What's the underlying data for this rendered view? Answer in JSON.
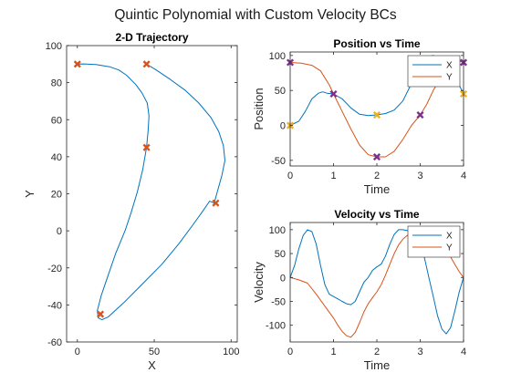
{
  "figure": {
    "suptitle": "Quintic Polynomial with Custom Velocity BCs"
  },
  "chart_data": [
    {
      "type": "line",
      "title": "2-D Trajectory",
      "xlabel": "X",
      "ylabel": "Y",
      "xlim": [
        -7,
        104
      ],
      "ylim": [
        -60,
        100
      ],
      "xticks": [
        0,
        50,
        100
      ],
      "yticks": [
        -60,
        -40,
        -20,
        0,
        20,
        40,
        60,
        80,
        100
      ],
      "grid": false,
      "series": [
        {
          "color": "#0072BD",
          "points": [
            [
              0,
              90
            ],
            [
              4.2,
              90.1
            ],
            [
              12,
              89.8
            ],
            [
              21,
              88.6
            ],
            [
              27,
              86.8
            ],
            [
              32,
              84
            ],
            [
              38,
              79
            ],
            [
              42,
              74.5
            ],
            [
              45.5,
              69
            ],
            [
              46.6,
              62
            ],
            [
              46,
              54
            ],
            [
              45,
              45
            ],
            [
              42.5,
              33
            ],
            [
              39,
              21
            ],
            [
              35,
              10
            ],
            [
              31,
              0
            ],
            [
              25,
              -12
            ],
            [
              20,
              -24
            ],
            [
              15.5,
              -35
            ],
            [
              13,
              -43
            ],
            [
              13.5,
              -47
            ],
            [
              16,
              -48
            ],
            [
              20,
              -46.5
            ],
            [
              30,
              -39
            ],
            [
              42,
              -29
            ],
            [
              55,
              -18
            ],
            [
              66,
              -7
            ],
            [
              75,
              3
            ],
            [
              81,
              10
            ],
            [
              86,
              16
            ],
            [
              89,
              15
            ],
            [
              91,
              21
            ],
            [
              94,
              30
            ],
            [
              96,
              38
            ],
            [
              95,
              46
            ],
            [
              92,
              53.5
            ],
            [
              87,
              61
            ],
            [
              79,
              69
            ],
            [
              70,
              76
            ],
            [
              60,
              82
            ],
            [
              51,
              87
            ],
            [
              45,
              90
            ]
          ]
        },
        {
          "color": "#D95319",
          "marker": "x",
          "points": [
            [
              0,
              90
            ],
            [
              45,
              90
            ],
            [
              45,
              45
            ],
            [
              90,
              15
            ],
            [
              15,
              -45
            ]
          ]
        }
      ]
    },
    {
      "type": "line",
      "title": "Position vs Time",
      "xlabel": "Time",
      "ylabel": "Position",
      "xlim": [
        0,
        4
      ],
      "ylim": [
        -58,
        105
      ],
      "xticks": [
        0,
        1,
        2,
        3,
        4
      ],
      "yticks": [
        -50,
        0,
        50,
        100
      ],
      "grid": false,
      "legend": "top-right",
      "series": [
        {
          "name": "X",
          "color": "#0072BD",
          "points": [
            [
              0,
              0
            ],
            [
              0.2,
              6
            ],
            [
              0.35,
              20
            ],
            [
              0.5,
              38
            ],
            [
              0.65,
              46
            ],
            [
              0.75,
              48
            ],
            [
              0.85,
              46
            ],
            [
              1,
              45
            ],
            [
              1.2,
              38
            ],
            [
              1.4,
              25
            ],
            [
              1.6,
              16
            ],
            [
              1.8,
              14
            ],
            [
              2,
              15
            ],
            [
              2.2,
              17
            ],
            [
              2.4,
              22
            ],
            [
              2.6,
              35
            ],
            [
              2.8,
              60
            ],
            [
              2.95,
              82
            ],
            [
              3.1,
              97
            ],
            [
              3.3,
              100
            ],
            [
              3.5,
              95
            ],
            [
              3.65,
              83
            ],
            [
              3.8,
              65
            ],
            [
              3.92,
              55
            ],
            [
              4,
              45
            ]
          ]
        },
        {
          "name": "Y",
          "color": "#D95319",
          "points": [
            [
              0,
              90
            ],
            [
              0.25,
              89
            ],
            [
              0.5,
              86
            ],
            [
              0.7,
              78
            ],
            [
              0.9,
              58
            ],
            [
              1,
              45
            ],
            [
              1.2,
              20
            ],
            [
              1.4,
              -5
            ],
            [
              1.6,
              -28
            ],
            [
              1.8,
              -42
            ],
            [
              2,
              -45
            ],
            [
              2.2,
              -45
            ],
            [
              2.4,
              -37
            ],
            [
              2.6,
              -20
            ],
            [
              2.8,
              0
            ],
            [
              3,
              15
            ],
            [
              3.15,
              30
            ],
            [
              3.3,
              50
            ],
            [
              3.5,
              72
            ],
            [
              3.7,
              88
            ],
            [
              3.85,
              93
            ],
            [
              4,
              90
            ]
          ]
        },
        {
          "name": "",
          "color": "#7E2F8E",
          "marker": "x",
          "points": [
            [
              0,
              90
            ],
            [
              1,
              45
            ],
            [
              2,
              -45
            ],
            [
              3,
              15
            ],
            [
              4,
              90
            ]
          ]
        },
        {
          "name": "",
          "color": "#EDB120",
          "marker": "x",
          "points": [
            [
              0,
              0
            ],
            [
              2,
              15
            ],
            [
              4,
              45
            ]
          ]
        }
      ]
    },
    {
      "type": "line",
      "title": "Velocity vs Time",
      "xlabel": "Time",
      "ylabel": "Velocity",
      "xlim": [
        0,
        4
      ],
      "ylim": [
        -135,
        115
      ],
      "xticks": [
        0,
        1,
        2,
        3,
        4
      ],
      "yticks": [
        -100,
        -50,
        0,
        50,
        100
      ],
      "grid": false,
      "legend": "top-right",
      "series": [
        {
          "name": "X",
          "color": "#0072BD",
          "points": [
            [
              0,
              0
            ],
            [
              0.1,
              25
            ],
            [
              0.2,
              60
            ],
            [
              0.3,
              88
            ],
            [
              0.4,
              100
            ],
            [
              0.5,
              96
            ],
            [
              0.6,
              70
            ],
            [
              0.7,
              25
            ],
            [
              0.8,
              -15
            ],
            [
              0.9,
              -35
            ],
            [
              1,
              -40
            ],
            [
              1.1,
              -45
            ],
            [
              1.2,
              -50
            ],
            [
              1.3,
              -55
            ],
            [
              1.4,
              -57
            ],
            [
              1.5,
              -50
            ],
            [
              1.6,
              -30
            ],
            [
              1.7,
              -10
            ],
            [
              1.8,
              0
            ],
            [
              1.9,
              15
            ],
            [
              2,
              22
            ],
            [
              2.1,
              28
            ],
            [
              2.2,
              45
            ],
            [
              2.3,
              70
            ],
            [
              2.4,
              90
            ],
            [
              2.5,
              100
            ],
            [
              2.6,
              100
            ],
            [
              2.7,
              98
            ],
            [
              2.8,
              97
            ],
            [
              2.9,
              100
            ],
            [
              3,
              80
            ],
            [
              3.1,
              40
            ],
            [
              3.2,
              0
            ],
            [
              3.3,
              -40
            ],
            [
              3.4,
              -80
            ],
            [
              3.5,
              -108
            ],
            [
              3.6,
              -118
            ],
            [
              3.7,
              -105
            ],
            [
              3.8,
              -70
            ],
            [
              3.9,
              -30
            ],
            [
              4,
              0
            ]
          ]
        },
        {
          "name": "Y",
          "color": "#D95319",
          "points": [
            [
              0,
              0
            ],
            [
              0.2,
              -5
            ],
            [
              0.4,
              -12
            ],
            [
              0.6,
              -35
            ],
            [
              0.8,
              -60
            ],
            [
              1,
              -85
            ],
            [
              1.1,
              -100
            ],
            [
              1.2,
              -113
            ],
            [
              1.3,
              -122
            ],
            [
              1.4,
              -125
            ],
            [
              1.5,
              -115
            ],
            [
              1.6,
              -95
            ],
            [
              1.7,
              -72
            ],
            [
              1.8,
              -55
            ],
            [
              1.9,
              -42
            ],
            [
              2,
              -30
            ],
            [
              2.1,
              -15
            ],
            [
              2.2,
              5
            ],
            [
              2.3,
              28
            ],
            [
              2.4,
              50
            ],
            [
              2.5,
              68
            ],
            [
              2.6,
              80
            ],
            [
              2.7,
              88
            ],
            [
              2.8,
              90
            ],
            [
              2.9,
              88
            ],
            [
              3,
              90
            ],
            [
              3.15,
              92
            ],
            [
              3.3,
              90
            ],
            [
              3.45,
              80
            ],
            [
              3.6,
              60
            ],
            [
              3.75,
              35
            ],
            [
              3.9,
              12
            ],
            [
              4,
              0
            ]
          ]
        }
      ]
    }
  ]
}
